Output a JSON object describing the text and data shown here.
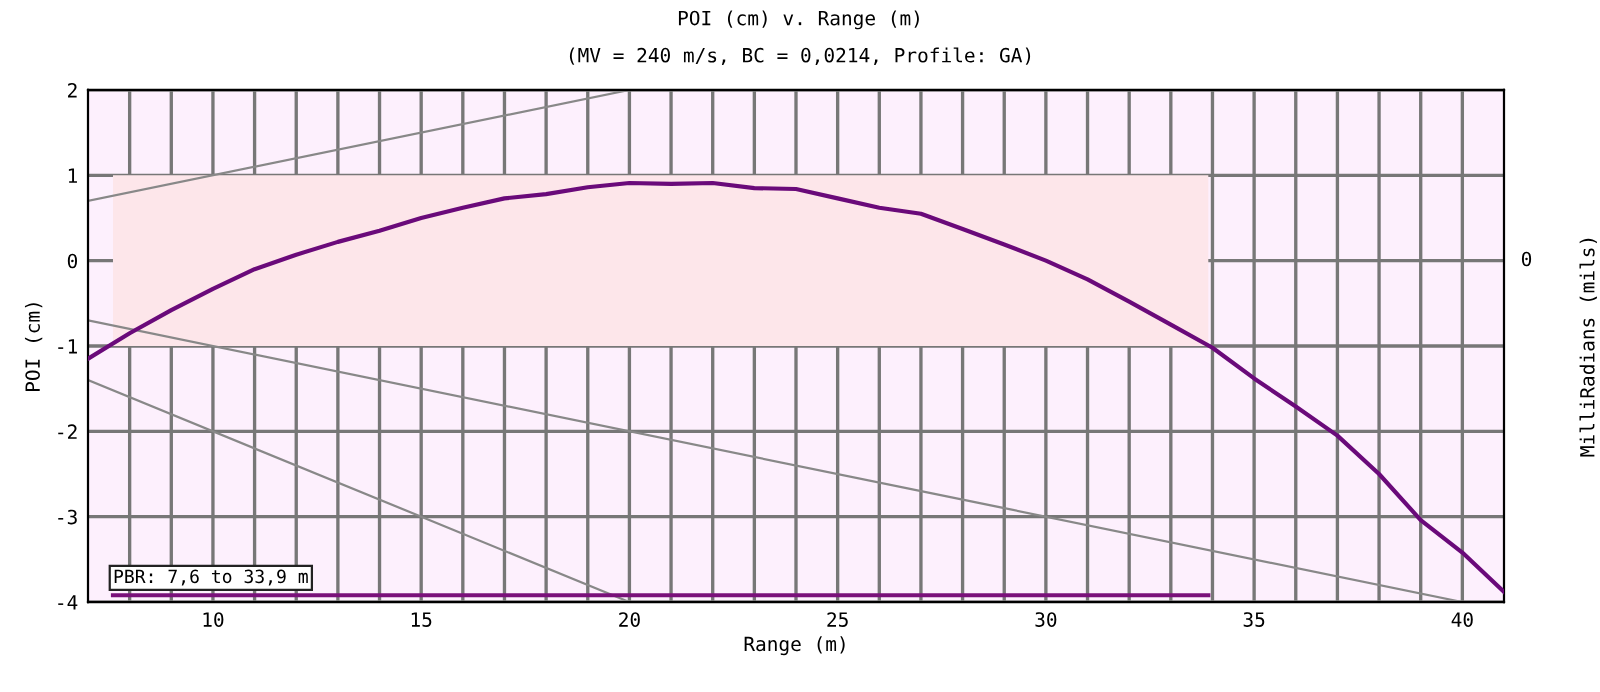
{
  "chart_data": {
    "type": "line",
    "title": "POI (cm) v. Range (m)",
    "subtitle": "(MV = 240 m/s, BC = 0,0214, Profile: GA)",
    "xlabel": "Range (m)",
    "ylabel": "POI (cm)",
    "y2label": "MilliRadians (mils)",
    "xlim": [
      7,
      41
    ],
    "ylim": [
      -4,
      2
    ],
    "yticks": [
      -4,
      -3,
      -2,
      -1,
      0,
      1,
      2
    ],
    "xticks": [
      {
        "value": 8,
        "label": null
      },
      {
        "value": 9,
        "label": null
      },
      10,
      {
        "value": 11,
        "label": null
      },
      {
        "value": 12,
        "label": null
      },
      {
        "value": 13,
        "label": null
      },
      {
        "value": 14,
        "label": null
      },
      15,
      {
        "value": 16,
        "label": null
      },
      {
        "value": 17,
        "label": null
      },
      {
        "value": 18,
        "label": null
      },
      {
        "value": 19,
        "label": null
      },
      20,
      {
        "value": 21,
        "label": null
      },
      {
        "value": 22,
        "label": null
      },
      {
        "value": 23,
        "label": null
      },
      {
        "value": 24,
        "label": null
      },
      25,
      {
        "value": 26,
        "label": null
      },
      {
        "value": 27,
        "label": null
      },
      {
        "value": 28,
        "label": null
      },
      {
        "value": 29,
        "label": null
      },
      30,
      {
        "value": 31,
        "label": null
      },
      {
        "value": 32,
        "label": null
      },
      {
        "value": 33,
        "label": null
      },
      {
        "value": 34,
        "label": null
      },
      35,
      {
        "value": 36,
        "label": null
      },
      {
        "value": 37,
        "label": null
      },
      {
        "value": 38,
        "label": null
      },
      {
        "value": 39,
        "label": null
      },
      40
    ],
    "grid": true,
    "legend": false,
    "marker": "none",
    "line_style": "solid",
    "series": [
      {
        "color": "#6a0a7a",
        "x": [
          7,
          8,
          9,
          10,
          11,
          12,
          13,
          14,
          15,
          16,
          17,
          18,
          19,
          20,
          21,
          22,
          23,
          24,
          25,
          26,
          27,
          28,
          29,
          30,
          31,
          32,
          33,
          34,
          35,
          36,
          37,
          38,
          39,
          40,
          41
        ],
        "values": [
          -1.15,
          -0.85,
          -0.58,
          -0.33,
          -0.1,
          0.07,
          0.22,
          0.35,
          0.5,
          0.62,
          0.73,
          0.78,
          0.86,
          0.91,
          0.9,
          0.91,
          0.85,
          0.84,
          0.73,
          0.62,
          0.55,
          0.37,
          0.19,
          0.0,
          -0.22,
          -0.48,
          -0.75,
          -1.02,
          -1.38,
          -1.71,
          -2.05,
          -2.5,
          -3.04,
          -3.42,
          -3.88
        ]
      },
      {
        "color": "#888888",
        "x": [
          7,
          20
        ],
        "values": [
          0.7,
          2.0
        ]
      },
      {
        "color": "#888888",
        "x": [
          7,
          40
        ],
        "values": [
          -0.7,
          -4.0
        ]
      },
      {
        "color": "#888888",
        "x": [
          7,
          20
        ],
        "values": [
          -1.4,
          -4.0
        ]
      },
      {
        "color": "#7a107a",
        "x": [
          7.6,
          33.9
        ],
        "values": [
          -3.92,
          -3.92
        ]
      }
    ],
    "bands": [
      {
        "axis": "y",
        "from": -1,
        "to": 1,
        "color": "#fde6ea"
      }
    ],
    "annotations": [
      "PBR: 7,6 to 33,9 m",
      "0"
    ]
  }
}
